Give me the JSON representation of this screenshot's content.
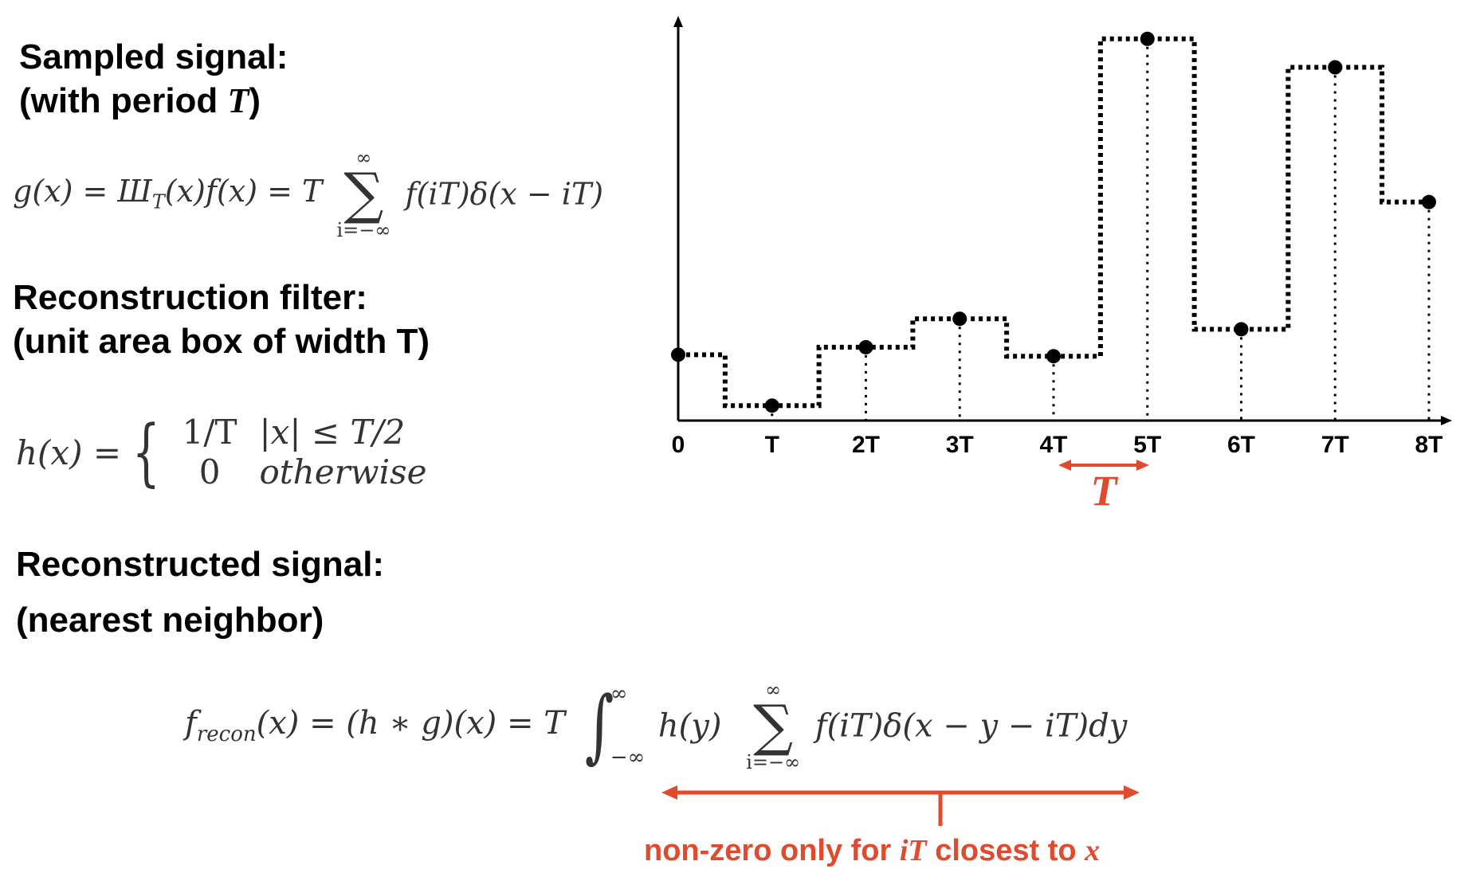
{
  "headings": {
    "sampled_line1": "Sampled signal:",
    "sampled_line2_prefix": "(with period ",
    "sampled_line2_symbol": "T",
    "sampled_line2_suffix": ")",
    "filter_line1": "Reconstruction filter:",
    "filter_line2": "(unit area box of width T)",
    "recon_line1": "Reconstructed signal:",
    "recon_line2": "(nearest neighbor)"
  },
  "eq_sampled": {
    "lhs": "g(x) = Ш",
    "sub": "T",
    "mid": "(x)f(x) = T",
    "sum_top": "∞",
    "sum_bottom": "i=−∞",
    "rhs": "f(iT)δ(x − iT)"
  },
  "eq_filter": {
    "lhs": "h(x) =",
    "case1_value": "1/T",
    "case1_cond": "|x| ≤ T/2",
    "case2_value": "0",
    "case2_cond": "otherwise"
  },
  "eq_recon": {
    "f": "f",
    "sub": "recon",
    "part1": "(x) = (h ∗ g)(x) = T",
    "int_top": "∞",
    "int_bottom": "−∞",
    "part2": "h(y)",
    "sum_top": "∞",
    "sum_bottom": "i=−∞",
    "part3": "f(iT)δ(x − y − iT)dy"
  },
  "annotations": {
    "period_label": "T",
    "note_prefix": "non-zero only for ",
    "note_var1": "iT",
    "note_middle": " closest to ",
    "note_var2": "x"
  },
  "colors": {
    "accent_red": "#e04a2d",
    "ink": "#000000"
  },
  "chart_data": {
    "type": "line",
    "title": "",
    "xlabel": "",
    "ylabel": "",
    "x": [
      0,
      1,
      2,
      3,
      4,
      5,
      6,
      7,
      8
    ],
    "categories": [
      "0",
      "T",
      "2T",
      "3T",
      "4T",
      "5T",
      "6T",
      "7T",
      "8T"
    ],
    "series": [
      {
        "values": [
          0.88,
          0.2,
          0.98,
          1.36,
          0.86,
          5.1,
          1.22,
          4.72,
          2.92
        ]
      }
    ],
    "ylim": [
      0,
      5.3
    ],
    "reconstruction": "nearest-neighbor step",
    "grid": false,
    "legend": "none"
  }
}
